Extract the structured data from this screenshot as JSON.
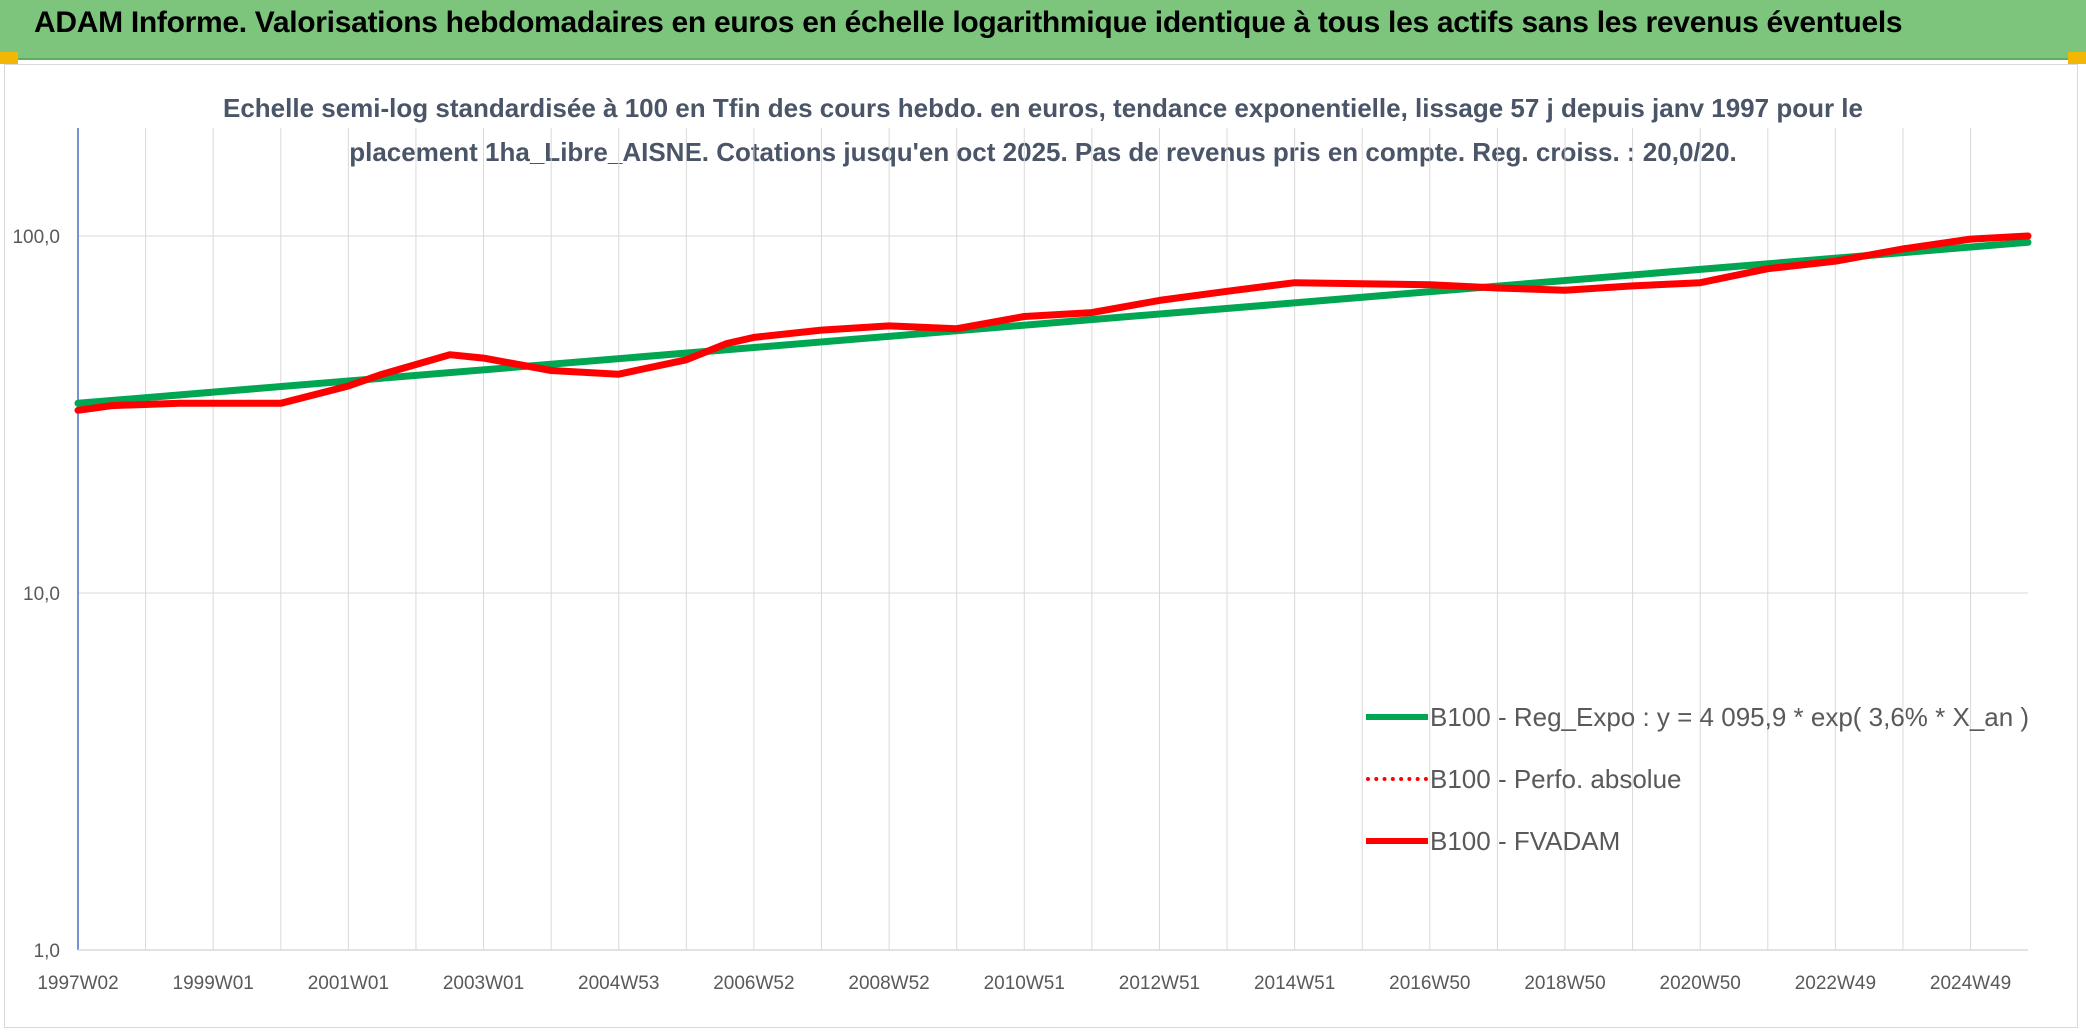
{
  "banner": {
    "title": "ADAM Informe. Valorisations hebdomadaires en euros en échelle logarithmique identique à tous les actifs sans les revenus éventuels"
  },
  "colors": {
    "banner_bg": "#7dc57d",
    "corner_accent": "#f2b705",
    "trend_line": "#00a651",
    "fvadam_line": "#ff0000",
    "grid": "#d9d9d9",
    "axis": "#4472c4"
  },
  "chart_data": {
    "type": "line",
    "title_line1": "Echelle semi-log standardisée à 100 en Tfin des cours hebdo. en euros, tendance exponentielle, lissage 57 j depuis janv 1997 pour le",
    "title_line2": "placement 1ha_Libre_AISNE. Cotations jusqu'en oct 2025. Pas de revenus pris en compte. Reg. croiss. : 20,0/20.",
    "y_scale": "log",
    "ylim": [
      1,
      200
    ],
    "y_ticks": [
      "1,0",
      "10,0",
      "100,0"
    ],
    "y_tick_values": [
      1,
      10,
      100
    ],
    "x_tick_labels": [
      "1997W02",
      "1999W01",
      "2001W01",
      "2003W01",
      "2004W53",
      "2006W52",
      "2008W52",
      "2010W51",
      "2012W51",
      "2014W51",
      "2016W50",
      "2018W50",
      "2020W50",
      "2022W49",
      "2024W49"
    ],
    "x_tick_years": [
      1997,
      1999,
      2001,
      2003,
      2005,
      2007,
      2009,
      2011,
      2013,
      2015,
      2017,
      2019,
      2021,
      2023,
      2025
    ],
    "xlim": [
      1997.0,
      2025.85
    ],
    "grid": true,
    "legend_position": "bottom-right",
    "series": [
      {
        "name": "B100 - Reg_Expo : y = 4 095,9 * exp( 3,6% *  X_an )",
        "style": "solid-green",
        "x": [
          1997.0,
          2025.85
        ],
        "y": [
          34.0,
          96.0
        ]
      },
      {
        "name": "B100 - Perfo. absolue",
        "style": "dotted-red",
        "x": [
          1997.0,
          1997.5,
          1998.5,
          1999.5,
          2000.0,
          2001.0,
          2001.5,
          2002.5,
          2003.0,
          2004.0,
          2005.0,
          2006.0,
          2006.6,
          2007.0,
          2008.0,
          2009.0,
          2010.0,
          2011.0,
          2012.0,
          2013.0,
          2014.0,
          2015.0,
          2016.0,
          2017.0,
          2018.0,
          2019.0,
          2020.0,
          2021.0,
          2022.0,
          2023.0,
          2024.0,
          2025.0,
          2025.85
        ],
        "y": [
          32.5,
          33.5,
          34.0,
          34.0,
          34.0,
          38.0,
          41.0,
          46.5,
          45.5,
          42.0,
          41.0,
          45.0,
          50.0,
          52.0,
          54.5,
          56.0,
          55.0,
          59.5,
          61.0,
          66.0,
          70.0,
          74.0,
          73.5,
          73.0,
          71.5,
          70.5,
          72.5,
          74.0,
          81.0,
          85.0,
          92.0,
          98.0,
          100.0
        ]
      },
      {
        "name": "B100 - FVADAM",
        "style": "solid-red",
        "x": [
          1997.0,
          1997.5,
          1998.5,
          1999.5,
          2000.0,
          2001.0,
          2001.5,
          2002.5,
          2003.0,
          2004.0,
          2005.0,
          2006.0,
          2006.6,
          2007.0,
          2008.0,
          2009.0,
          2010.0,
          2011.0,
          2012.0,
          2013.0,
          2014.0,
          2015.0,
          2016.0,
          2017.0,
          2018.0,
          2019.0,
          2020.0,
          2021.0,
          2022.0,
          2023.0,
          2024.0,
          2025.0,
          2025.85
        ],
        "y": [
          32.5,
          33.5,
          34.0,
          34.0,
          34.0,
          38.0,
          41.0,
          46.5,
          45.5,
          42.0,
          41.0,
          45.0,
          50.0,
          52.0,
          54.5,
          56.0,
          55.0,
          59.5,
          61.0,
          66.0,
          70.0,
          74.0,
          73.5,
          73.0,
          71.5,
          70.5,
          72.5,
          74.0,
          81.0,
          85.0,
          92.0,
          98.0,
          100.0
        ]
      }
    ]
  }
}
